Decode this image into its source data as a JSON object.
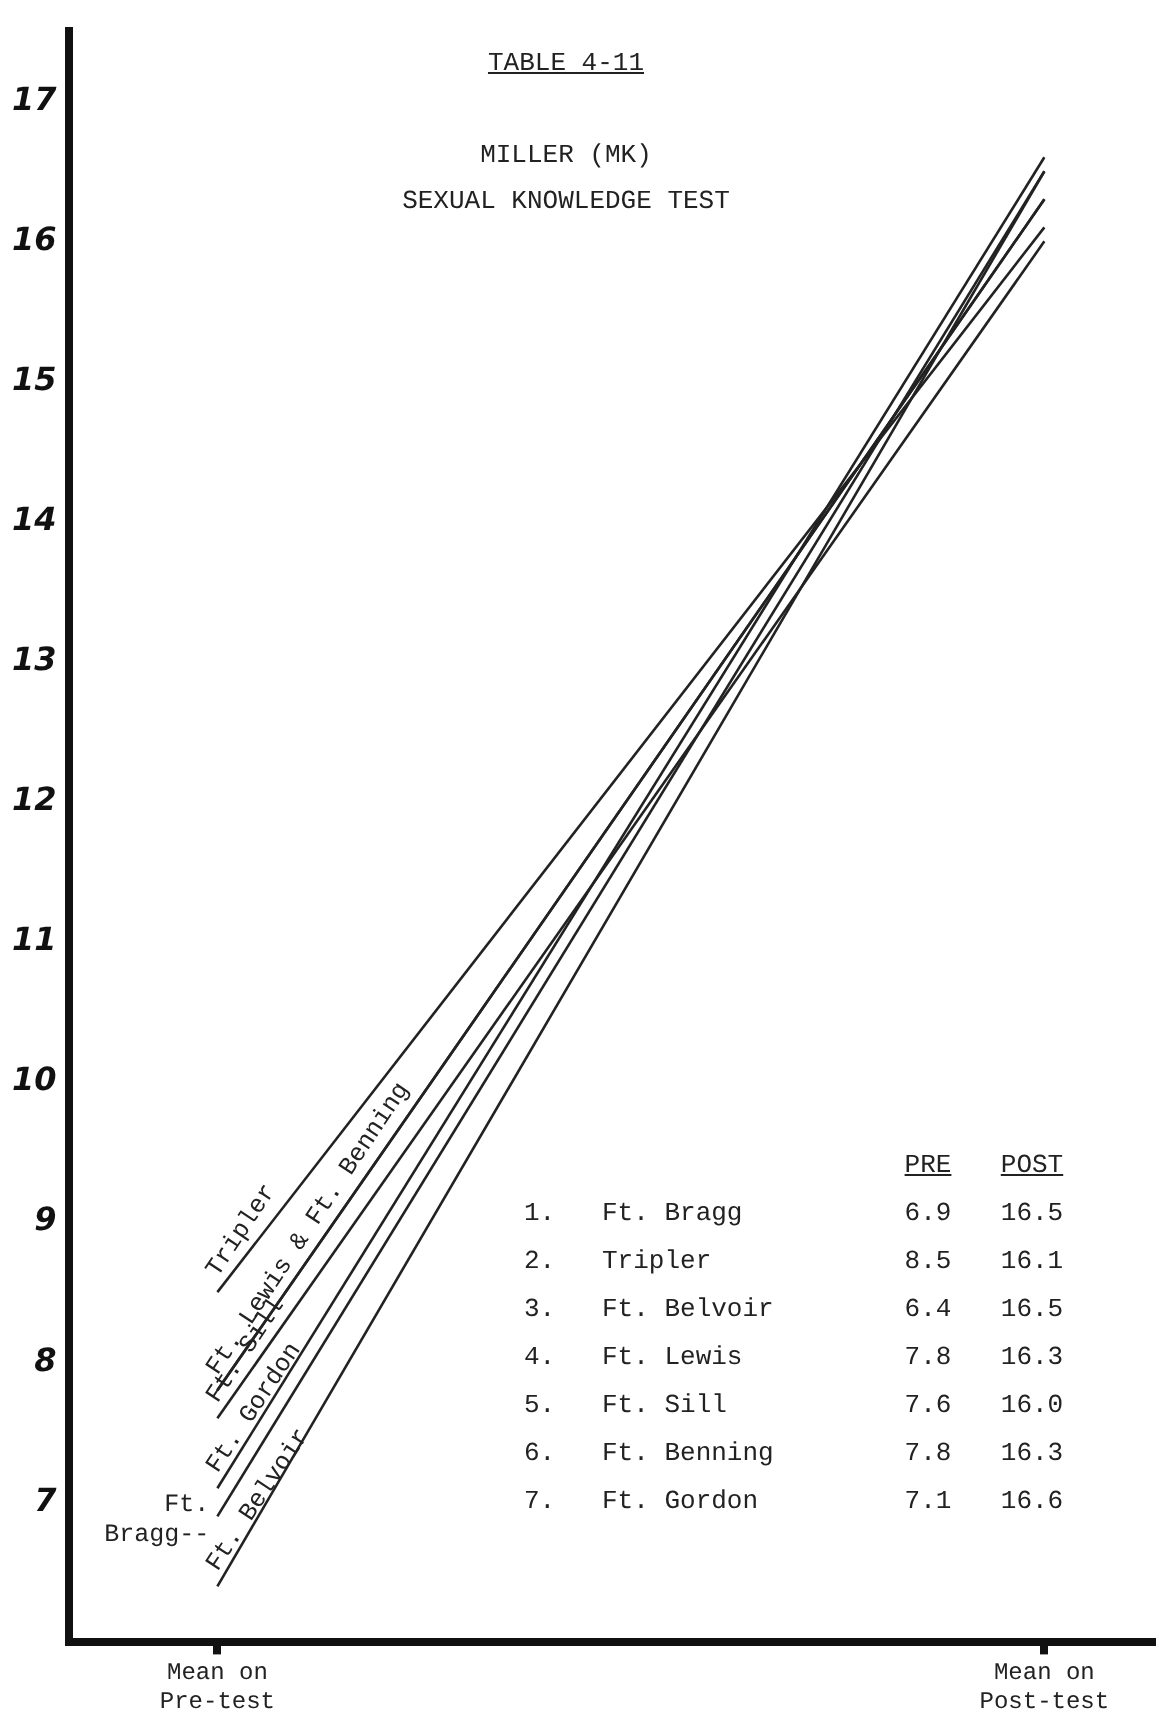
{
  "chart_data": [
    {
      "type": "line",
      "title": "TABLE 4-11",
      "subtitle": "MILLER (MK)\nSEXUAL KNOWLEDGE TEST",
      "categories": [
        "Mean on\nPre-test",
        "Mean on\nPost-test"
      ],
      "series": [
        {
          "color": "#222222",
          "values": [
            6.9,
            16.5
          ]
        },
        {
          "color": "#222222",
          "values": [
            8.5,
            16.1
          ]
        },
        {
          "color": "#222222",
          "values": [
            6.4,
            16.5
          ]
        },
        {
          "color": "#222222",
          "values": [
            7.8,
            16.3
          ]
        },
        {
          "color": "#222222",
          "values": [
            7.6,
            16.0
          ]
        },
        {
          "color": "#222222",
          "values": [
            7.8,
            16.3
          ]
        },
        {
          "color": "#222222",
          "values": [
            7.1,
            16.6
          ]
        }
      ],
      "ylim": [
        6,
        17.5
      ],
      "yticks": [
        7,
        8,
        9,
        10,
        11,
        12,
        13,
        14,
        15,
        16,
        17
      ],
      "grid": false,
      "legend": false,
      "marker": "none",
      "line_style": "solid",
      "annotations": [
        {
          "text": "Tripler",
          "x": "Mean on\nPre-test",
          "y": 8.5
        },
        {
          "text": "Ft. Lewis & Ft. Benning",
          "x": "Mean on\nPre-test",
          "y": 7.8
        },
        {
          "text": "Ft. Sill",
          "x": "Mean on\nPre-test",
          "y": 7.6
        },
        {
          "text": "Ft. Gordon",
          "x": "Mean on\nPre-test",
          "y": 7.1
        },
        {
          "text": "Ft. Belvoir",
          "x": "Mean on\nPre-test",
          "y": 6.4
        },
        {
          "text": "Ft.\nBragg--",
          "x": "Mean on\nPre-test",
          "y": 6.9
        }
      ]
    },
    {
      "type": "other",
      "categories": [
        "1. Ft. Bragg",
        "2. Tripler",
        "3. Ft. Belvoir",
        "4. Ft. Lewis",
        "5. Ft. Sill",
        "6. Ft. Benning",
        "7. Ft. Gordon"
      ],
      "series": [
        {
          "name": "PRE",
          "values": [
            6.9,
            8.5,
            6.4,
            7.8,
            7.6,
            7.8,
            7.1
          ],
          "value_labels": [
            "6.9",
            "8.5",
            "6.4",
            "7.8",
            "7.6",
            "7.8",
            "7.1"
          ]
        },
        {
          "name": "POST",
          "values": [
            16.5,
            16.1,
            16.5,
            16.3,
            16.0,
            16.3,
            16.6
          ],
          "value_labels": [
            "16.5",
            "16.1",
            "16.5",
            "16.3",
            "16.0",
            "16.3",
            "16.6"
          ]
        }
      ]
    }
  ]
}
